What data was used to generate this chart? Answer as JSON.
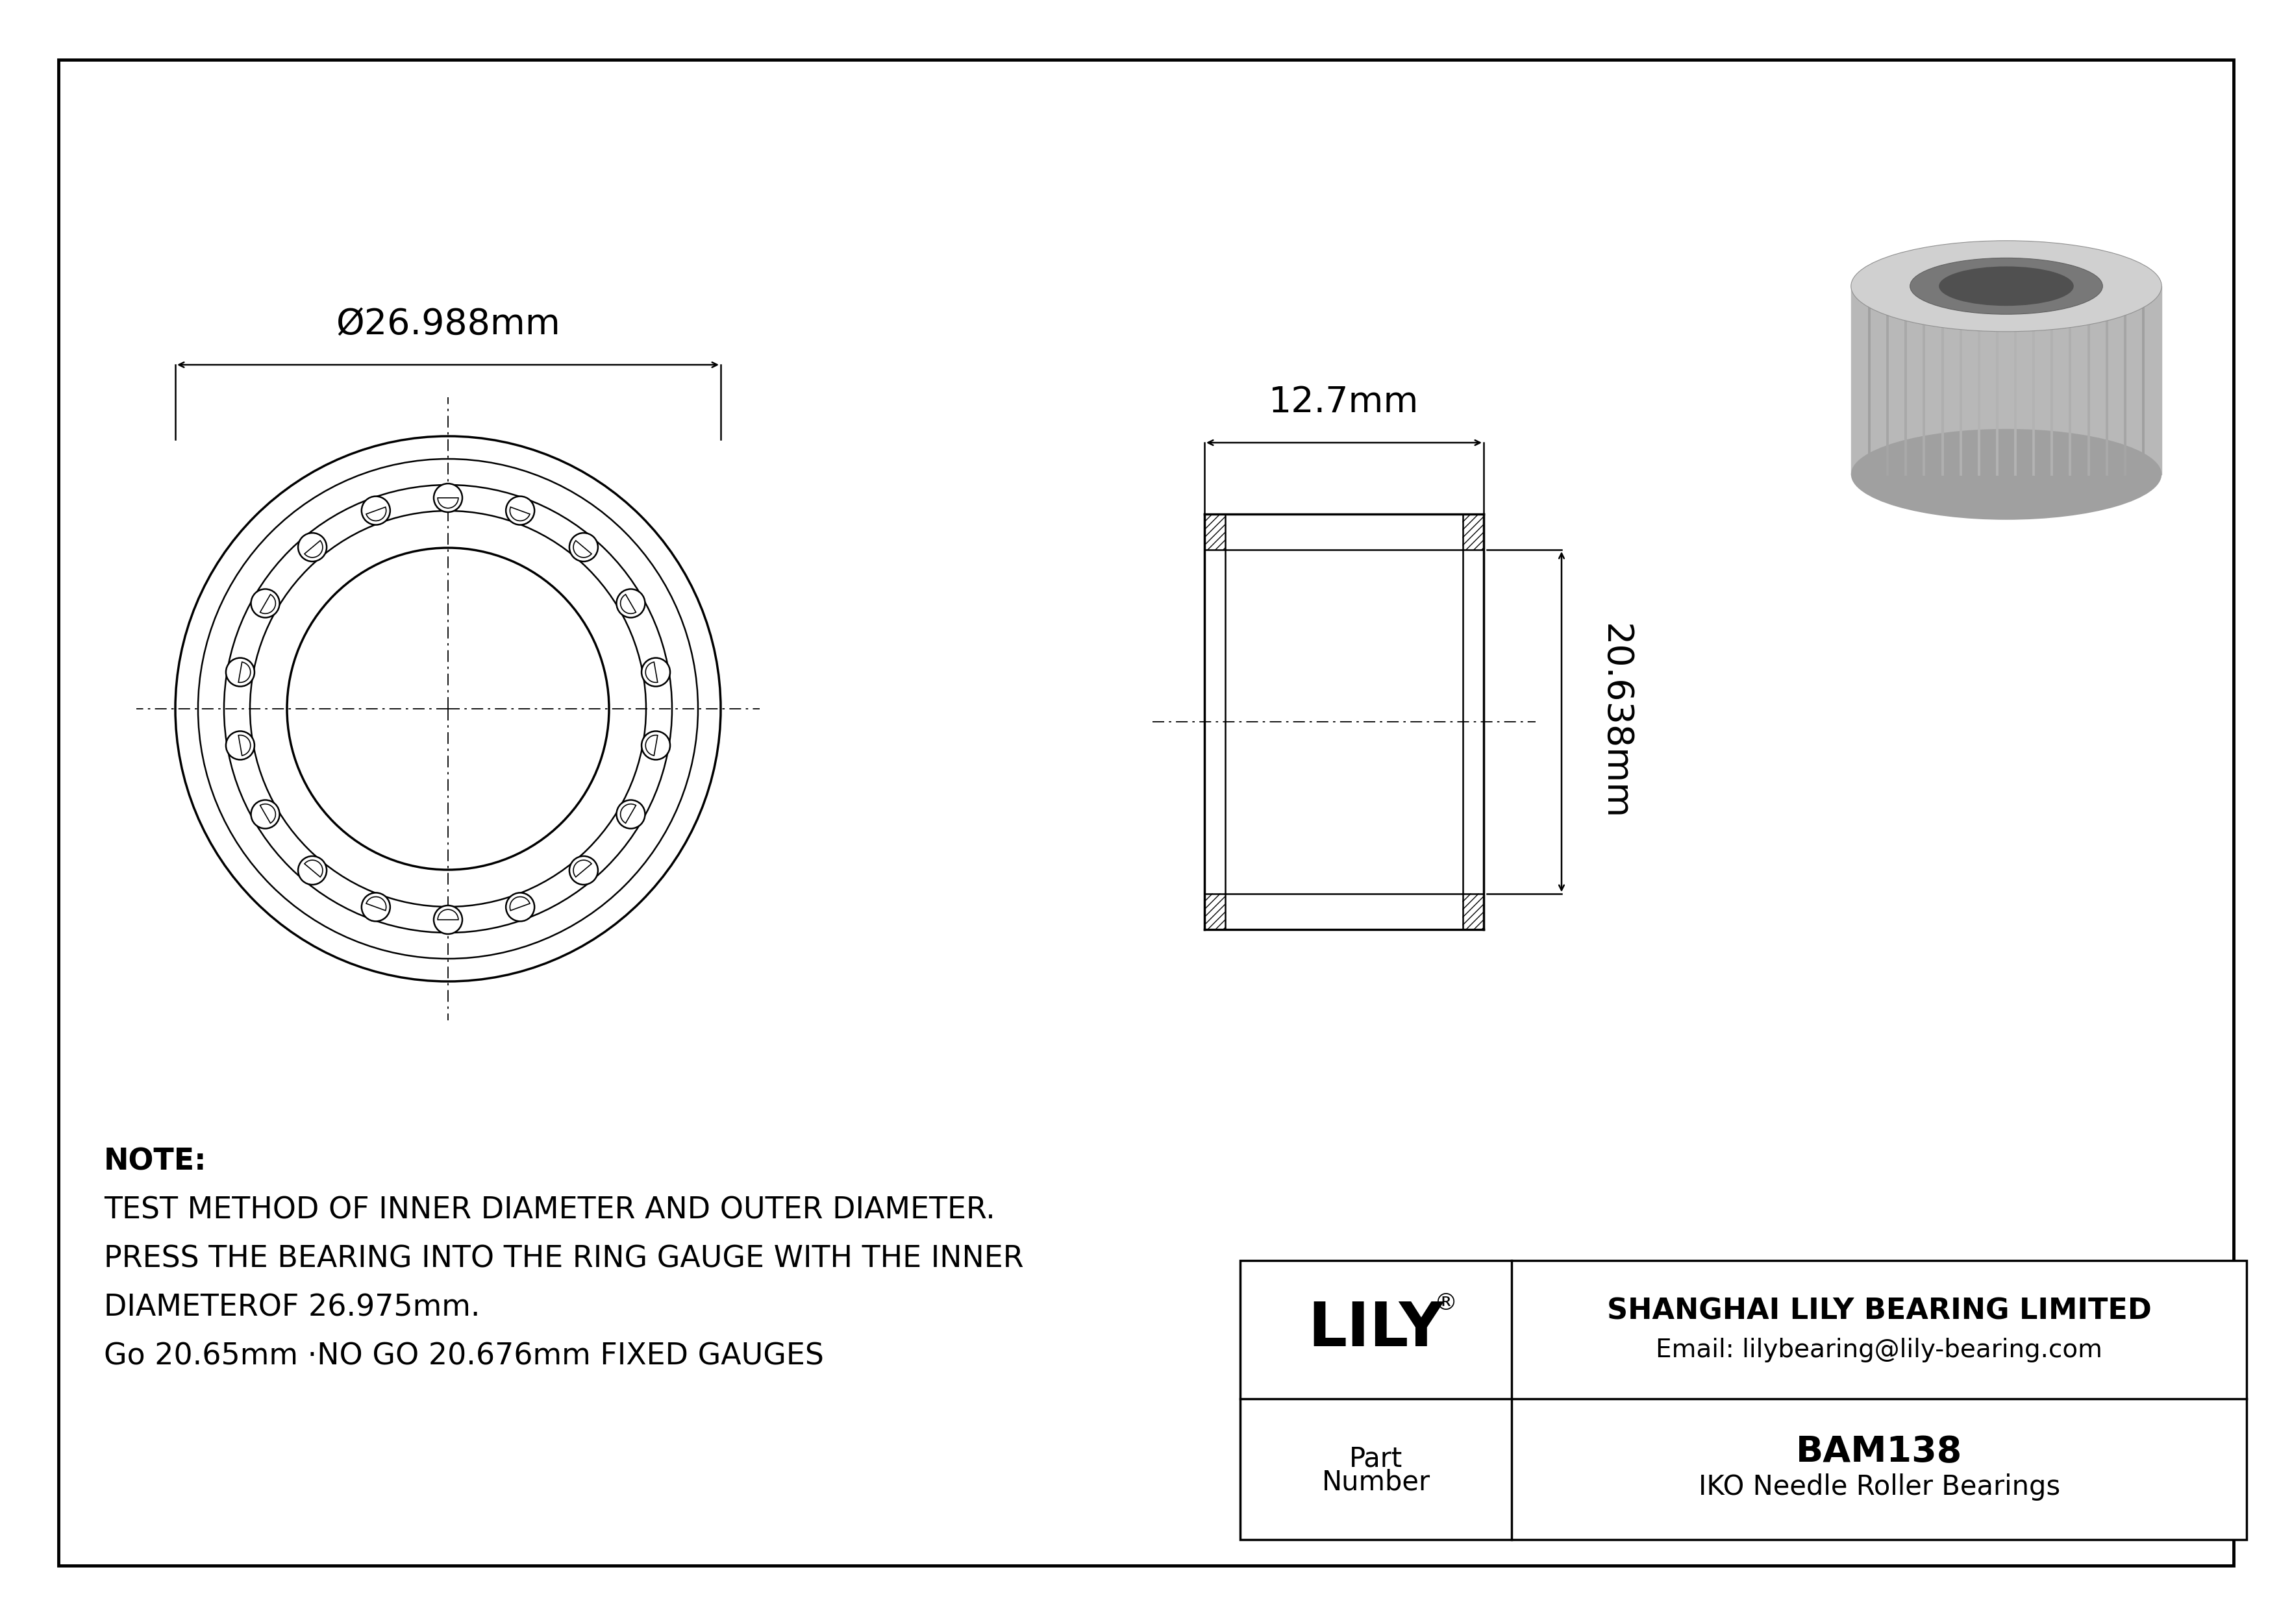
{
  "bg_color": "#ffffff",
  "line_color": "#000000",
  "border_color": "#000000",
  "dim_outer_dia": "Ø26.988mm",
  "dim_width": "12.7mm",
  "dim_height": "20.638mm",
  "note_line1": "NOTE:",
  "note_line2": "TEST METHOD OF INNER DIAMETER AND OUTER DIAMETER.",
  "note_line3": "PRESS THE BEARING INTO THE RING GAUGE WITH THE INNER",
  "note_line4": "DIAMETEROF 26.975mm.",
  "note_line5": "Go 20.65mm ·NO GO 20.676mm FIXED GAUGES",
  "company": "SHANGHAI LILY BEARING LIMITED",
  "email": "Email: lilybearing@lily-bearing.com",
  "part_label": "Part\nNumber",
  "part_number": "BAM138",
  "bearing_type": "IKO Needle Roller Bearings",
  "brand": "LILY",
  "brand_reg": "®"
}
